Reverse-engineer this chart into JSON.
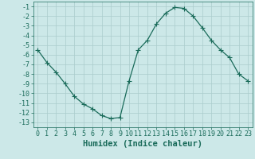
{
  "x": [
    0,
    1,
    2,
    3,
    4,
    5,
    6,
    7,
    8,
    9,
    10,
    11,
    12,
    13,
    14,
    15,
    16,
    17,
    18,
    19,
    20,
    21,
    22,
    23
  ],
  "y": [
    -5.5,
    -6.8,
    -7.8,
    -9.0,
    -10.3,
    -11.1,
    -11.6,
    -12.3,
    -12.6,
    -12.5,
    -8.7,
    -5.5,
    -4.5,
    -2.8,
    -1.7,
    -1.1,
    -1.2,
    -2.0,
    -3.2,
    -4.5,
    -5.5,
    -6.3,
    -8.0,
    -8.7
  ],
  "line_color": "#1a6b5a",
  "marker": "+",
  "marker_size": 4,
  "marker_linewidth": 0.8,
  "line_width": 0.9,
  "bg_color": "#cce8e8",
  "grid_color": "#aacccc",
  "xlabel": "Humidex (Indice chaleur)",
  "xlim": [
    -0.5,
    23.5
  ],
  "ylim": [
    -13.5,
    -0.5
  ],
  "yticks": [
    -13,
    -12,
    -11,
    -10,
    -9,
    -8,
    -7,
    -6,
    -5,
    -4,
    -3,
    -2,
    -1
  ],
  "xticks": [
    0,
    1,
    2,
    3,
    4,
    5,
    6,
    7,
    8,
    9,
    10,
    11,
    12,
    13,
    14,
    15,
    16,
    17,
    18,
    19,
    20,
    21,
    22,
    23
  ],
  "tick_font_size": 6.0,
  "xlabel_font_size": 7.5,
  "tick_color": "#1a6b5a",
  "label_color": "#1a6b5a"
}
